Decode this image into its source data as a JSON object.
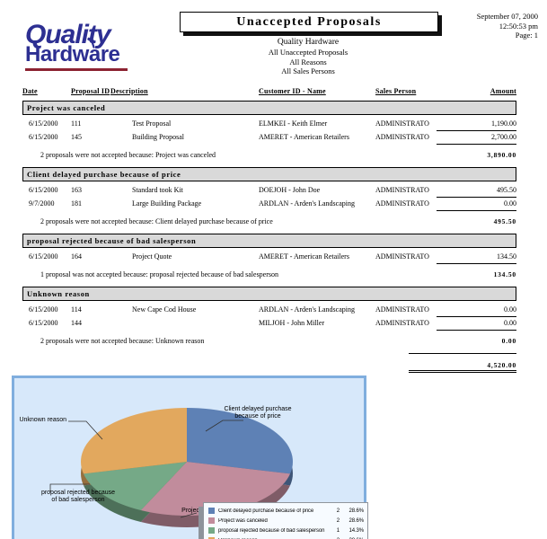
{
  "report": {
    "logo_line1": "Quality",
    "logo_line2": "Hardware",
    "title": "Unaccepted Proposals",
    "print_date": "September 07, 2000",
    "print_time": "12:50:53 pm",
    "page_number": "Page: 1",
    "subtitle": [
      "Quality Hardware",
      "All Unaccepted Proposals",
      "All Reasons",
      "All Sales Persons"
    ]
  },
  "table": {
    "columns": [
      "Date",
      "Proposal ID",
      "Description",
      "Customer ID - Name",
      "Sales Person",
      "Amount"
    ],
    "sections": [
      {
        "header": "Project was canceled",
        "rows": [
          {
            "date": "6/15/2000",
            "proposal_id": "111",
            "description": "Test Proposal",
            "customer": "ELMKEI - Keith Elmer",
            "sales_person": "ADMINISTRATO",
            "amount": "1,190.00"
          },
          {
            "date": "6/15/2000",
            "proposal_id": "145",
            "description": "Building Proposal",
            "customer": "AMERET - American Retailers",
            "sales_person": "ADMINISTRATO",
            "amount": "2,700.00"
          }
        ],
        "summary": "2 proposals were not accepted because: Project was canceled",
        "subtotal": "3,890.00"
      },
      {
        "header": "Client delayed purchase because of price",
        "rows": [
          {
            "date": "6/15/2000",
            "proposal_id": "163",
            "description": "Standard took Kit",
            "customer": "DOEJOH - John Doe",
            "sales_person": "ADMINISTRATO",
            "amount": "495.50"
          },
          {
            "date": "9/7/2000",
            "proposal_id": "181",
            "description": "Large Building Package",
            "customer": "ARDLAN - Arden's Landscaping",
            "sales_person": "ADMINISTRATO",
            "amount": "0.00"
          }
        ],
        "summary": "2 proposals were not accepted because: Client delayed purchase because of price",
        "subtotal": "495.50"
      },
      {
        "header": "proposal rejected because of bad salesperson",
        "rows": [
          {
            "date": "6/15/2000",
            "proposal_id": "164",
            "description": "Project Quote",
            "customer": "AMERET - American Retailers",
            "sales_person": "ADMINISTRATO",
            "amount": "134.50"
          }
        ],
        "summary": "1 proposal was not accepted because: proposal rejected because of bad salesperson",
        "subtotal": "134.50"
      },
      {
        "header": "Unknown reason",
        "rows": [
          {
            "date": "6/15/2000",
            "proposal_id": "114",
            "description": "New Cape Cod House",
            "customer": "ARDLAN - Arden's Landscaping",
            "sales_person": "ADMINISTRATO",
            "amount": "0.00"
          },
          {
            "date": "6/15/2000",
            "proposal_id": "144",
            "description": "",
            "customer": "MILJOH - John Miller",
            "sales_person": "ADMINISTRATO",
            "amount": "0.00"
          }
        ],
        "summary": "2 proposals were not accepted because: Unknown reason",
        "subtotal": "0.00"
      }
    ],
    "grand_total": "4,520.00"
  },
  "chart_data": {
    "type": "pie",
    "categories": [
      "Client delayed purchase because of price",
      "Project was canceled",
      "proposal rejected because of bad salesperson",
      "Unknown reason"
    ],
    "values": [
      2,
      2,
      1,
      2
    ],
    "counts": [
      "2",
      "2",
      "1",
      "2"
    ],
    "percent_labels": [
      "28.6%",
      "28.6%",
      "14.3%",
      "28.6%"
    ],
    "total_label": "Total",
    "total_count": "7",
    "total_percent": "100.0%",
    "colors": [
      "#5e81b5",
      "#c18c9c",
      "#75a987",
      "#e2a85e"
    ],
    "panel_background": "#d7e8fa",
    "panel_border": "#80aede",
    "callouts": {
      "blue": [
        "Client delayed purchase",
        "because of price"
      ],
      "orange": [
        "Unknown reason"
      ],
      "green": [
        "proposal rejected because",
        "of bad salesperson"
      ],
      "pink": [
        "Projec"
      ]
    },
    "legend_position": "bottom-right"
  }
}
